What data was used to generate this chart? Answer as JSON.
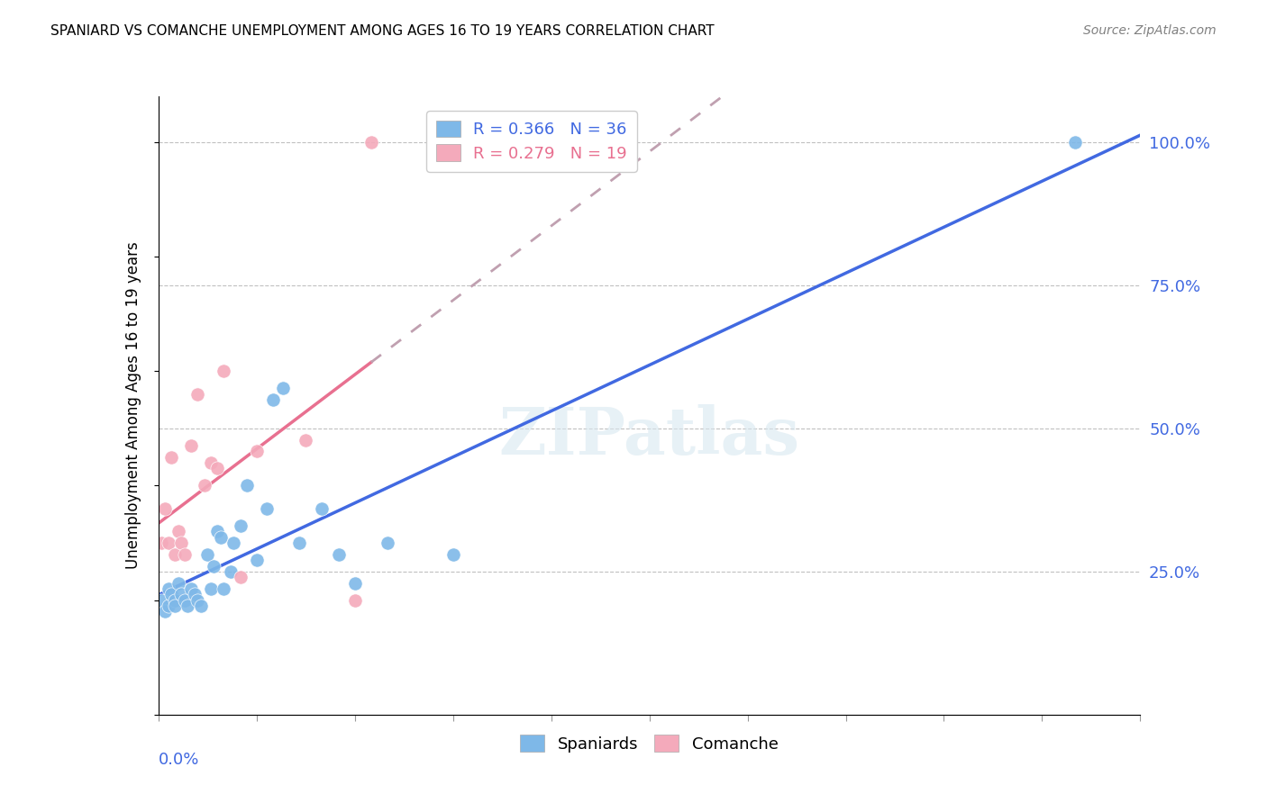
{
  "title": "SPANIARD VS COMANCHE UNEMPLOYMENT AMONG AGES 16 TO 19 YEARS CORRELATION CHART",
  "source": "Source: ZipAtlas.com",
  "ylabel": "Unemployment Among Ages 16 to 19 years",
  "legend_blue": {
    "R": "0.366",
    "N": "36",
    "label": "Spaniards"
  },
  "legend_pink": {
    "R": "0.279",
    "N": "19",
    "label": "Comanche"
  },
  "blue_color": "#7EB8E8",
  "pink_color": "#F4AABB",
  "trendline_blue_color": "#4169E1",
  "trendline_pink_color": "#E87090",
  "trendline_pink_dash_color": "#C0A0B0",
  "watermark": "ZIPatlas",
  "spaniards_x": [
    0.001,
    0.002,
    0.003,
    0.003,
    0.004,
    0.005,
    0.005,
    0.006,
    0.007,
    0.008,
    0.009,
    0.01,
    0.011,
    0.012,
    0.013,
    0.015,
    0.016,
    0.017,
    0.018,
    0.019,
    0.02,
    0.022,
    0.023,
    0.025,
    0.027,
    0.03,
    0.033,
    0.035,
    0.038,
    0.043,
    0.05,
    0.055,
    0.06,
    0.07,
    0.09,
    0.28
  ],
  "spaniards_y": [
    0.2,
    0.18,
    0.22,
    0.19,
    0.21,
    0.2,
    0.19,
    0.23,
    0.21,
    0.2,
    0.19,
    0.22,
    0.21,
    0.2,
    0.19,
    0.28,
    0.22,
    0.26,
    0.32,
    0.31,
    0.22,
    0.25,
    0.3,
    0.33,
    0.4,
    0.27,
    0.36,
    0.55,
    0.57,
    0.3,
    0.36,
    0.28,
    0.23,
    0.3,
    0.28,
    1.0
  ],
  "comanche_x": [
    0.001,
    0.002,
    0.003,
    0.004,
    0.005,
    0.006,
    0.007,
    0.008,
    0.01,
    0.012,
    0.014,
    0.016,
    0.018,
    0.02,
    0.025,
    0.03,
    0.045,
    0.06,
    0.065
  ],
  "comanche_y": [
    0.3,
    0.36,
    0.3,
    0.45,
    0.28,
    0.32,
    0.3,
    0.28,
    0.47,
    0.56,
    0.4,
    0.44,
    0.43,
    0.6,
    0.24,
    0.46,
    0.48,
    0.2,
    1.0
  ],
  "xmin": 0.0,
  "xmax": 0.3,
  "ymin": 0.0,
  "ymax": 1.08
}
